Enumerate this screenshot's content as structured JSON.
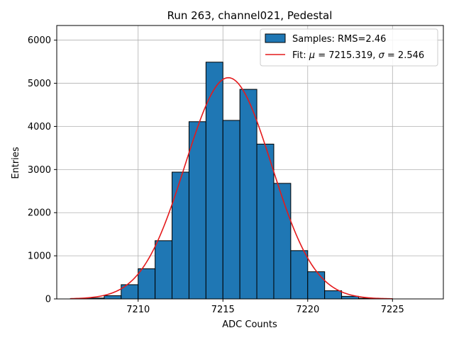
{
  "chart_data": {
    "type": "bar",
    "title": "Run 263, channel021, Pedestal",
    "xlabel": "ADC Counts",
    "ylabel": "Entries",
    "xlim": [
      7205.2,
      7228.0
    ],
    "ylim": [
      0,
      6340
    ],
    "xticks": [
      7210,
      7215,
      7220,
      7225
    ],
    "yticks": [
      0,
      1000,
      2000,
      3000,
      4000,
      5000,
      6000
    ],
    "grid": true,
    "legend_position": "top-right",
    "colors": {
      "bar_fill": "#1f77b4",
      "bar_edge": "#000000",
      "fit_line": "#e41a1c",
      "grid": "#b0b0b0"
    },
    "histogram": {
      "name": "Samples: RMS=2.46",
      "bin_width": 1,
      "bins": [
        {
          "left": 7206,
          "count": 5
        },
        {
          "left": 7207,
          "count": 20
        },
        {
          "left": 7208,
          "count": 75
        },
        {
          "left": 7209,
          "count": 330
        },
        {
          "left": 7210,
          "count": 700
        },
        {
          "left": 7211,
          "count": 1350
        },
        {
          "left": 7212,
          "count": 2940
        },
        {
          "left": 7213,
          "count": 4110
        },
        {
          "left": 7214,
          "count": 5490
        },
        {
          "left": 7215,
          "count": 4140
        },
        {
          "left": 7216,
          "count": 4860
        },
        {
          "left": 7217,
          "count": 3590
        },
        {
          "left": 7218,
          "count": 2680
        },
        {
          "left": 7219,
          "count": 1120
        },
        {
          "left": 7220,
          "count": 630
        },
        {
          "left": 7221,
          "count": 190
        },
        {
          "left": 7222,
          "count": 60
        },
        {
          "left": 7223,
          "count": 15
        },
        {
          "left": 7224,
          "count": 5
        }
      ]
    },
    "fit": {
      "name": "Fit: μ = 7215.319, σ = 2.546",
      "label_prefix": "Fit:",
      "mu_symbol": "μ",
      "mu_text": "= 7215.319,",
      "sigma_symbol": "σ",
      "sigma_text": "= 2.546",
      "mu": 7215.319,
      "sigma": 2.546,
      "amplitude": 5130,
      "x_range": [
        7206,
        7225
      ]
    }
  }
}
